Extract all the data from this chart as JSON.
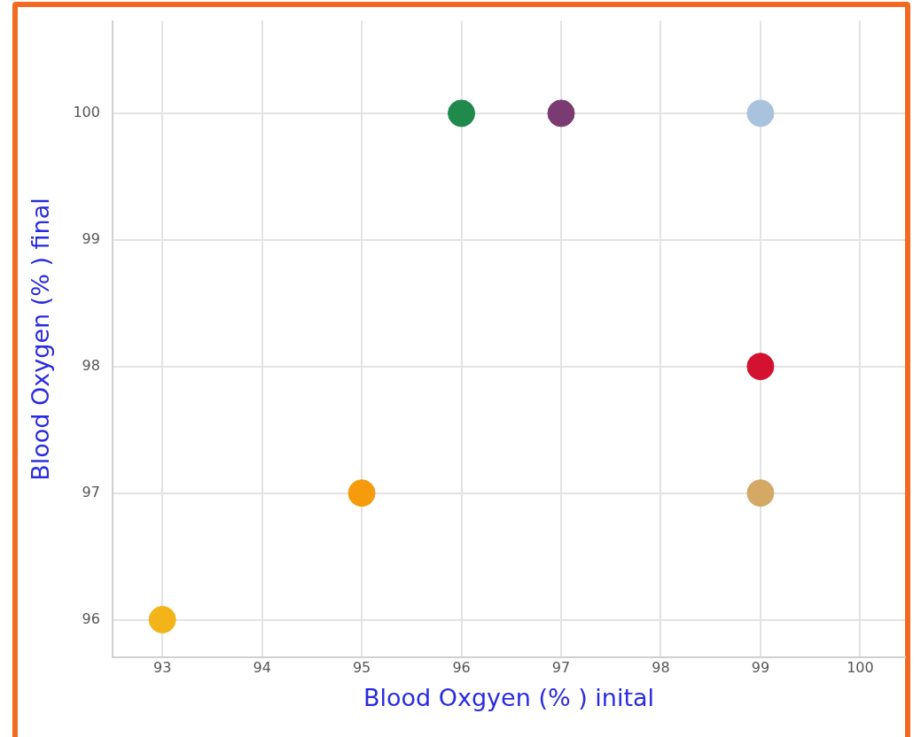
{
  "chart_data": {
    "type": "scatter",
    "xlabel": "Blood Oxgyen (% ) inital",
    "ylabel": "Blood Oxygen (% ) final",
    "x": [
      93,
      95,
      96,
      97,
      99,
      99,
      99
    ],
    "values": [
      96,
      97,
      100,
      100,
      100,
      98,
      97
    ],
    "colors": [
      "#f2b418",
      "#f59b0c",
      "#1f8a4c",
      "#7a3b72",
      "#a9c3df",
      "#d3122f",
      "#d4a865"
    ],
    "xlim": [
      92.5,
      100.45
    ],
    "xticks": [
      93,
      94,
      95,
      96,
      97,
      98,
      99,
      100
    ],
    "ylim": [
      95.7,
      100.73
    ],
    "yticks": [
      96,
      97,
      98,
      99,
      100
    ],
    "grid": true,
    "legend": false,
    "marker": "circle"
  }
}
